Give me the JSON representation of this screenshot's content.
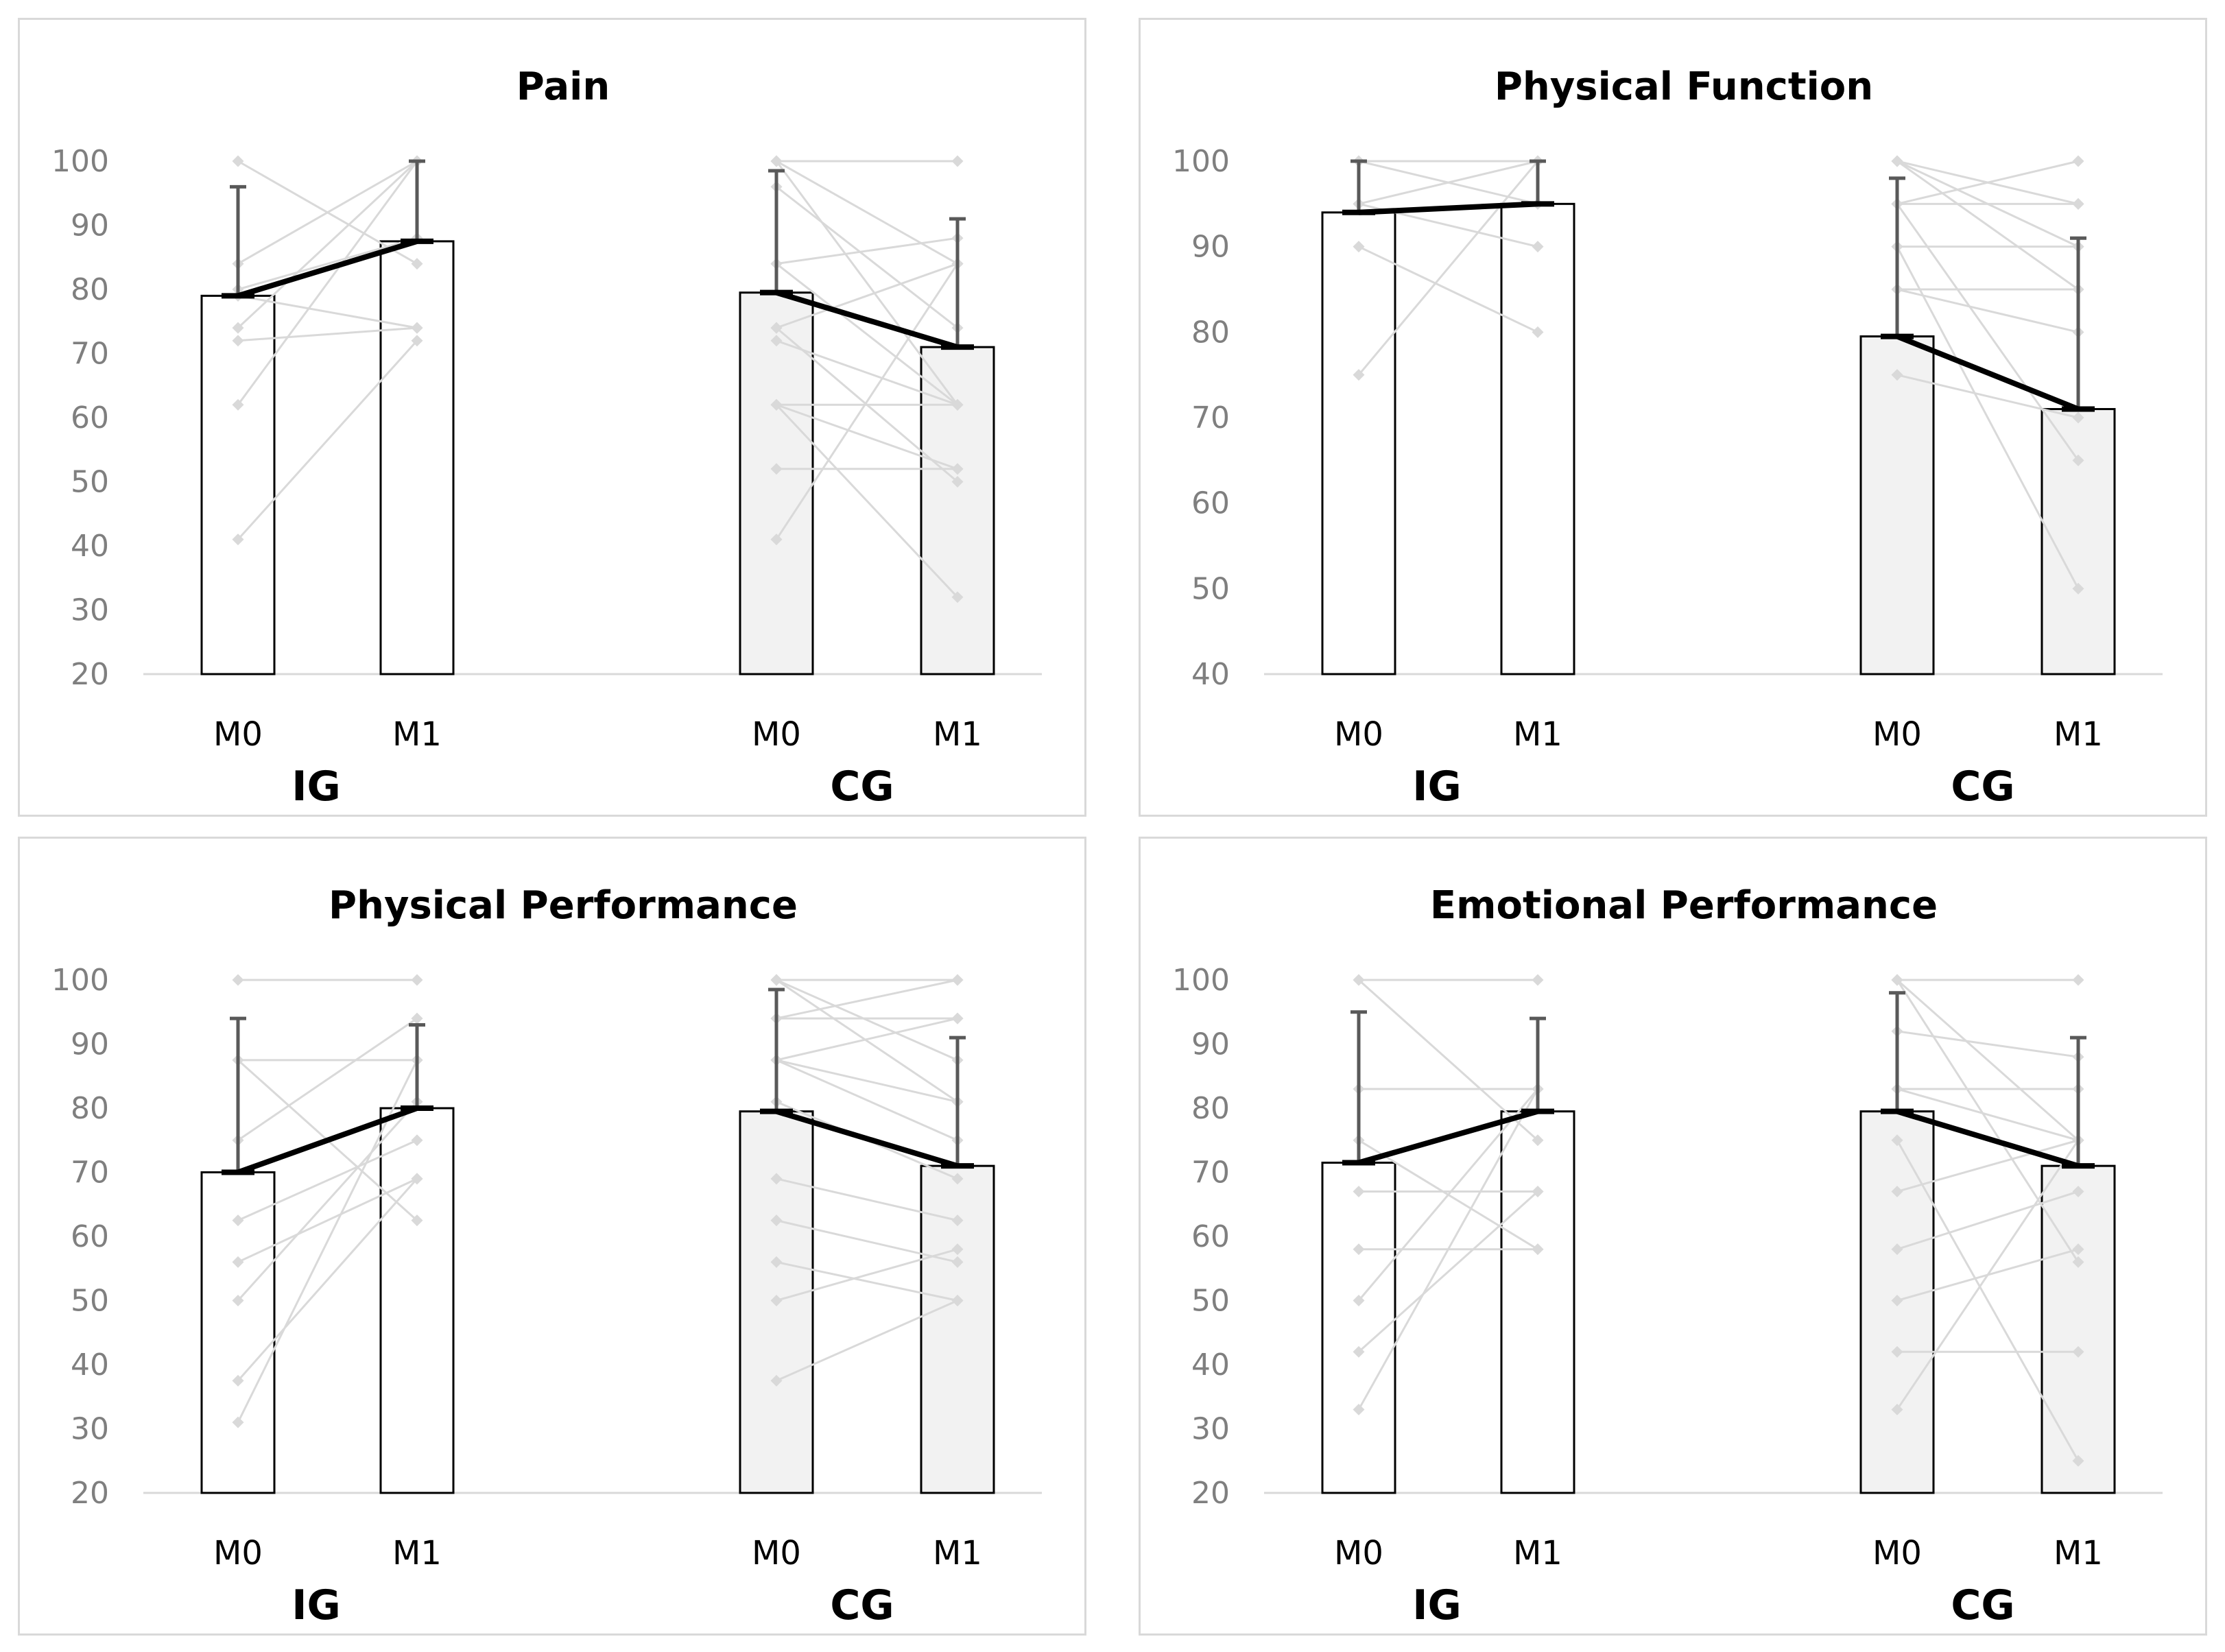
{
  "chart_data": [
    {
      "type": "bar",
      "title": "Pain",
      "ylim": [
        20,
        100
      ],
      "yticks": [
        100,
        90,
        80,
        70,
        60,
        50,
        40,
        30,
        20
      ],
      "groups": [
        {
          "label": "IG",
          "categories": [
            "M0",
            "M1"
          ],
          "means": [
            79,
            87.5
          ],
          "sd_upper": [
            96,
            100
          ],
          "individual": [
            [
              100,
              84
            ],
            [
              84,
              100
            ],
            [
              74,
              100
            ],
            [
              72,
              74
            ],
            [
              62,
              100
            ],
            [
              41,
              72
            ],
            [
              80,
              88
            ],
            [
              79,
              74
            ]
          ]
        },
        {
          "label": "CG",
          "categories": [
            "M0",
            "M1"
          ],
          "means": [
            79.5,
            71
          ],
          "sd_upper": [
            98.5,
            91
          ],
          "individual": [
            [
              100,
              62
            ],
            [
              100,
              100
            ],
            [
              96,
              74
            ],
            [
              84,
              88
            ],
            [
              84,
              62
            ],
            [
              74,
              84
            ],
            [
              72,
              62
            ],
            [
              62,
              62
            ],
            [
              62,
              52
            ],
            [
              52,
              52
            ],
            [
              41,
              84
            ],
            [
              62,
              32
            ],
            [
              74,
              50
            ],
            [
              100,
              84
            ]
          ]
        }
      ]
    },
    {
      "type": "bar",
      "title": "Physical Function",
      "ylim": [
        40,
        100
      ],
      "yticks": [
        100,
        90,
        80,
        70,
        60,
        50,
        40
      ],
      "groups": [
        {
          "label": "IG",
          "categories": [
            "M0",
            "M1"
          ],
          "means": [
            94,
            95
          ],
          "sd_upper": [
            100,
            100
          ],
          "individual": [
            [
              100,
              100
            ],
            [
              95,
              100
            ],
            [
              90,
              80
            ],
            [
              75,
              100
            ],
            [
              95,
              90
            ],
            [
              100,
              95
            ]
          ]
        },
        {
          "label": "CG",
          "categories": [
            "M0",
            "M1"
          ],
          "means": [
            79.5,
            71
          ],
          "sd_upper": [
            98,
            91
          ],
          "individual": [
            [
              100,
              95
            ],
            [
              100,
              85
            ],
            [
              95,
              100
            ],
            [
              95,
              65
            ],
            [
              90,
              90
            ],
            [
              90,
              50
            ],
            [
              85,
              85
            ],
            [
              85,
              80
            ],
            [
              75,
              70
            ],
            [
              95,
              95
            ],
            [
              100,
              90
            ]
          ]
        }
      ]
    },
    {
      "type": "bar",
      "title": "Physical Performance",
      "ylim": [
        20,
        100
      ],
      "yticks": [
        100,
        90,
        80,
        70,
        60,
        50,
        40,
        30,
        20
      ],
      "groups": [
        {
          "label": "IG",
          "categories": [
            "M0",
            "M1"
          ],
          "means": [
            70,
            80
          ],
          "sd_upper": [
            94,
            93
          ],
          "individual": [
            [
              100,
              100
            ],
            [
              87.5,
              87.5
            ],
            [
              87.5,
              62.5
            ],
            [
              75,
              94
            ],
            [
              62.5,
              75
            ],
            [
              56,
              69
            ],
            [
              50,
              81
            ],
            [
              37.5,
              69
            ],
            [
              31,
              87.5
            ]
          ]
        },
        {
          "label": "CG",
          "categories": [
            "M0",
            "M1"
          ],
          "means": [
            79.5,
            71
          ],
          "sd_upper": [
            98.5,
            91
          ],
          "individual": [
            [
              100,
              100
            ],
            [
              100,
              87.5
            ],
            [
              94,
              94
            ],
            [
              87.5,
              81
            ],
            [
              87.5,
              75
            ],
            [
              81,
              69
            ],
            [
              69,
              62.5
            ],
            [
              62.5,
              56
            ],
            [
              56,
              50
            ],
            [
              50,
              58
            ],
            [
              37.5,
              50
            ],
            [
              94,
              100
            ],
            [
              100,
              81
            ],
            [
              87.5,
              94
            ]
          ]
        }
      ]
    },
    {
      "type": "bar",
      "title": "Emotional Performance",
      "ylim": [
        20,
        100
      ],
      "yticks": [
        100,
        90,
        80,
        70,
        60,
        50,
        40,
        30,
        20
      ],
      "groups": [
        {
          "label": "IG",
          "categories": [
            "M0",
            "M1"
          ],
          "means": [
            71.5,
            79.5
          ],
          "sd_upper": [
            95,
            94
          ],
          "individual": [
            [
              100,
              100
            ],
            [
              100,
              75
            ],
            [
              83,
              83
            ],
            [
              75,
              58
            ],
            [
              67,
              67
            ],
            [
              58,
              58
            ],
            [
              50,
              83
            ],
            [
              42,
              67
            ],
            [
              33,
              83
            ]
          ]
        },
        {
          "label": "CG",
          "categories": [
            "M0",
            "M1"
          ],
          "means": [
            79.5,
            71
          ],
          "sd_upper": [
            98,
            91
          ],
          "individual": [
            [
              100,
              100
            ],
            [
              100,
              75
            ],
            [
              92,
              88
            ],
            [
              83,
              83
            ],
            [
              75,
              25
            ],
            [
              67,
              75
            ],
            [
              58,
              67
            ],
            [
              50,
              58
            ],
            [
              42,
              42
            ],
            [
              33,
              75
            ],
            [
              100,
              56
            ],
            [
              83,
              75
            ]
          ]
        }
      ]
    }
  ]
}
